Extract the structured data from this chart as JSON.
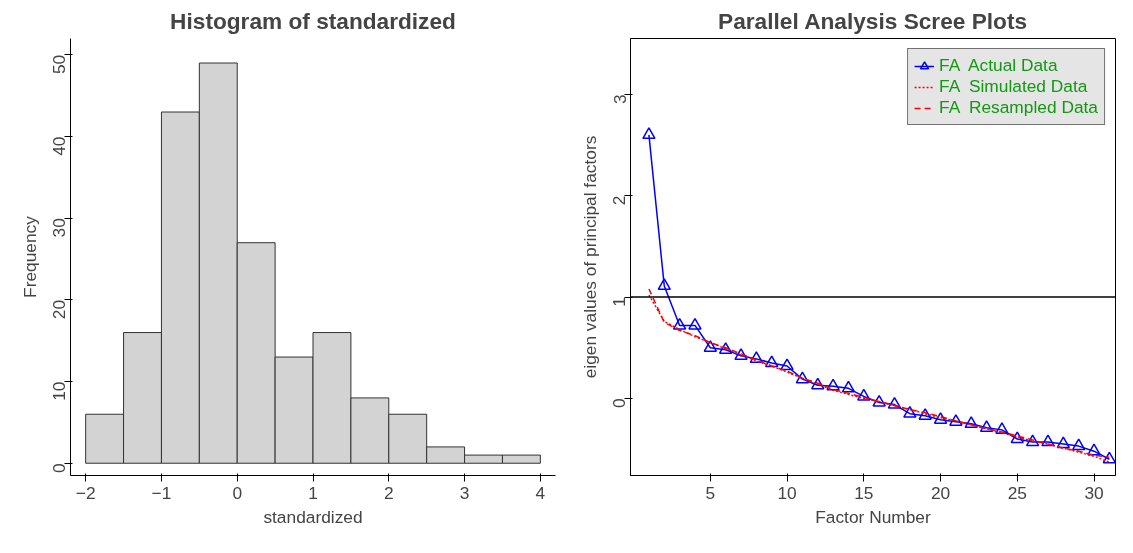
{
  "chart_data": [
    {
      "type": "histogram",
      "title": "Histogram of standardized",
      "xlabel": "standardized",
      "ylabel": "Frequency",
      "bins": [
        -2,
        -1.5,
        -1,
        -0.5,
        0,
        0.5,
        1,
        1.5,
        2,
        2.5,
        3,
        3.5,
        4
      ],
      "values": [
        6,
        16,
        43,
        49,
        27,
        13,
        16,
        8,
        6,
        2,
        1,
        1
      ],
      "color": "#d3d3d3",
      "xlim": [
        -2.2,
        4.2
      ],
      "xticks": [
        -2,
        -1,
        0,
        1,
        2,
        3,
        4
      ],
      "ylim": [
        -1.5,
        52
      ],
      "yticks": [
        0,
        10,
        20,
        30,
        40,
        50
      ],
      "grid": false
    },
    {
      "type": "line",
      "title": "Parallel Analysis Scree Plots",
      "xlabel": "Factor Number",
      "ylabel": "eigen values of principal factors",
      "x": [
        1,
        2,
        3,
        4,
        5,
        6,
        7,
        8,
        9,
        10,
        11,
        12,
        13,
        14,
        15,
        16,
        17,
        18,
        19,
        20,
        21,
        22,
        23,
        24,
        25,
        26,
        27,
        28,
        29,
        30,
        31
      ],
      "series": [
        {
          "name": "FA  Actual Data",
          "color": "#0000ff",
          "line_style": "solid",
          "marker": "triangle",
          "values": [
            2.6,
            1.11,
            0.72,
            0.72,
            0.5,
            0.48,
            0.42,
            0.39,
            0.35,
            0.32,
            0.19,
            0.13,
            0.12,
            0.1,
            0.02,
            -0.04,
            -0.06,
            -0.15,
            -0.17,
            -0.21,
            -0.23,
            -0.25,
            -0.29,
            -0.31,
            -0.4,
            -0.43,
            -0.43,
            -0.45,
            -0.47,
            -0.52,
            -0.6
          ]
        },
        {
          "name": "FA  Simulated Data",
          "color": "#ff0000",
          "line_style": "dotted",
          "marker": "none",
          "values": [
            1.02,
            0.76,
            0.68,
            0.61,
            0.55,
            0.49,
            0.43,
            0.37,
            0.32,
            0.26,
            0.2,
            0.14,
            0.08,
            0.04,
            0.0,
            -0.03,
            -0.07,
            -0.11,
            -0.15,
            -0.19,
            -0.22,
            -0.26,
            -0.3,
            -0.34,
            -0.38,
            -0.42,
            -0.45,
            -0.49,
            -0.53,
            -0.57,
            -0.63
          ]
        },
        {
          "name": "FA  Resampled Data",
          "color": "#ff0000",
          "line_style": "dashed",
          "marker": "none",
          "values": [
            1.08,
            0.75,
            0.67,
            0.62,
            0.55,
            0.5,
            0.44,
            0.38,
            0.32,
            0.27,
            0.2,
            0.15,
            0.09,
            0.05,
            0.01,
            -0.03,
            -0.07,
            -0.11,
            -0.14,
            -0.18,
            -0.22,
            -0.26,
            -0.3,
            -0.33,
            -0.37,
            -0.41,
            -0.45,
            -0.49,
            -0.52,
            -0.56,
            -0.58
          ]
        }
      ],
      "ref_lines": [
        {
          "axis": "y",
          "value": 1,
          "color": "#000000"
        }
      ],
      "xlim": [
        -0.2,
        31.4
      ],
      "xticks": [
        5,
        10,
        15,
        20,
        25,
        30
      ],
      "ylim": [
        -0.76,
        3.55
      ],
      "yticks": [
        0,
        1,
        2,
        3
      ],
      "grid": false,
      "legend": "top right"
    }
  ]
}
